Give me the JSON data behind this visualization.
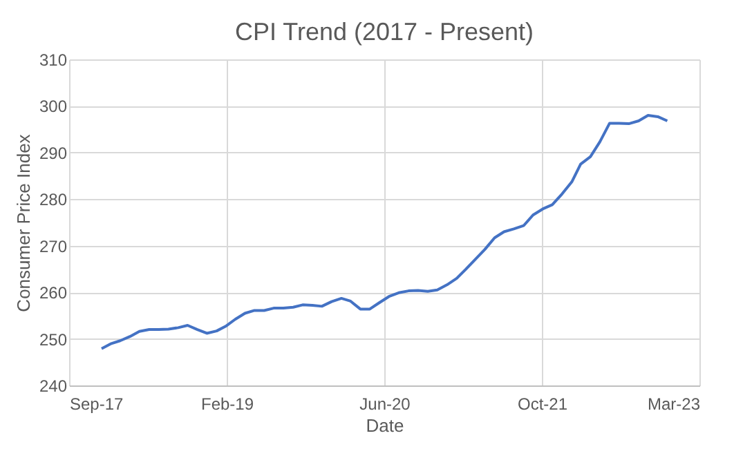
{
  "chart_data": {
    "type": "line",
    "title": "CPI Trend (2017 - Present)",
    "xlabel": "Date",
    "ylabel": "Consumer Price Index",
    "x": [
      "2018-01-01",
      "2018-02-01",
      "2018-03-01",
      "2018-04-01",
      "2018-05-01",
      "2018-06-01",
      "2018-07-01",
      "2018-08-01",
      "2018-09-01",
      "2018-10-01",
      "2018-11-01",
      "2018-12-01",
      "2019-01-01",
      "2019-02-01",
      "2019-03-01",
      "2019-04-01",
      "2019-05-01",
      "2019-06-01",
      "2019-07-01",
      "2019-08-01",
      "2019-09-01",
      "2019-10-01",
      "2019-11-01",
      "2019-12-01",
      "2020-01-01",
      "2020-02-01",
      "2020-03-01",
      "2020-04-01",
      "2020-05-01",
      "2020-06-01",
      "2020-07-01",
      "2020-08-01",
      "2020-09-01",
      "2020-10-01",
      "2020-11-01",
      "2020-12-01",
      "2021-01-01",
      "2021-02-01",
      "2021-03-01",
      "2021-04-01",
      "2021-05-01",
      "2021-06-01",
      "2021-07-01",
      "2021-08-01",
      "2021-09-01",
      "2021-10-01",
      "2021-11-01",
      "2021-12-01",
      "2022-01-01",
      "2022-02-01",
      "2022-03-01",
      "2022-04-01",
      "2022-05-01",
      "2022-06-01",
      "2022-07-01",
      "2022-08-01",
      "2022-09-01",
      "2022-10-01",
      "2022-11-01",
      "2022-12-01"
    ],
    "series": [
      {
        "color": "#4472c4",
        "values": [
          247.9,
          249.0,
          249.6,
          250.5,
          251.6,
          252.0,
          252.0,
          252.1,
          252.4,
          252.9,
          252.0,
          251.2,
          251.7,
          252.8,
          254.2,
          255.5,
          256.1,
          256.1,
          256.6,
          256.6,
          256.8,
          257.3,
          257.2,
          257.0,
          258.0,
          258.7,
          258.1,
          256.4,
          256.4,
          257.8,
          259.1,
          259.9,
          260.3,
          260.4,
          260.2,
          260.5,
          261.6,
          263.0,
          264.9,
          267.1,
          269.2,
          271.7,
          273.0,
          273.6,
          274.3,
          276.6,
          277.9,
          278.8,
          281.1,
          283.7,
          287.5,
          289.1,
          292.3,
          296.3,
          296.3,
          296.2,
          296.8,
          298.0,
          297.7,
          296.8
        ]
      }
    ],
    "xlim": [
      "2017-09-20",
      "2023-03-13"
    ],
    "xticks": [
      {
        "value": "2017-09-20",
        "label": "Sep-17"
      },
      {
        "value": "2019-02-02",
        "label": "Feb-19"
      },
      {
        "value": "2020-06-16",
        "label": "Jun-20"
      },
      {
        "value": "2021-10-29",
        "label": "Oct-21"
      },
      {
        "value": "2023-03-13",
        "label": "Mar-23"
      }
    ],
    "ylim": [
      240,
      310
    ],
    "yticks": [
      240,
      250,
      260,
      270,
      280,
      290,
      300,
      310
    ],
    "grid": true,
    "legend": false,
    "marker": "none",
    "line_style": "solid"
  }
}
